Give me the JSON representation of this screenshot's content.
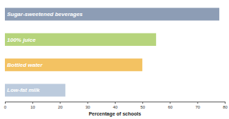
{
  "chart_data": {
    "type": "bar",
    "orientation": "horizontal",
    "categories": [
      "Sugar-sweetened beverages",
      "100% juice",
      "Bottled water",
      "Low-fat milk"
    ],
    "values": [
      78,
      55,
      50,
      22
    ],
    "colors": [
      "#8d9db5",
      "#b6d47c",
      "#f3c262",
      "#bccbdd"
    ],
    "x_label": "Percentage of schools",
    "xlim": [
      0,
      80
    ],
    "xticks": [
      0,
      10,
      20,
      30,
      40,
      50,
      60,
      70,
      80
    ],
    "grid": false,
    "tick_labels": "x"
  }
}
